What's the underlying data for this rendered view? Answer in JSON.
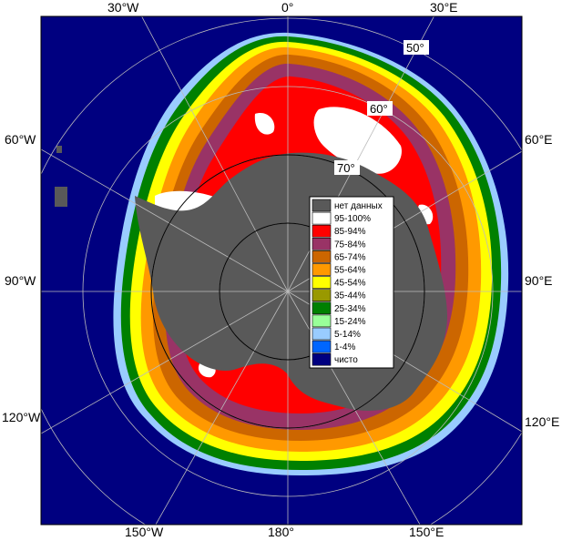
{
  "longitude_labels": {
    "lon_30w": "30°W",
    "lon_0": "0°",
    "lon_30e": "30°E",
    "lon_60w": "60°W",
    "lon_60e": "60°E",
    "lon_90w": "90°W",
    "lon_90e": "90°E",
    "lon_120w": "120°W",
    "lon_120e": "120°E",
    "lon_150w": "150°W",
    "lon_180": "180°",
    "lon_150e": "150°E"
  },
  "latitude_labels": {
    "lat_50": "50°",
    "lat_60": "60°",
    "lat_70": "70°"
  },
  "legend": [
    {
      "label": "нет данных",
      "color": "#595959"
    },
    {
      "label": "95-100%",
      "color": "#ffffff"
    },
    {
      "label": "85-94%",
      "color": "#ff0000"
    },
    {
      "label": "75-84%",
      "color": "#993366"
    },
    {
      "label": "65-74%",
      "color": "#cc6600"
    },
    {
      "label": "55-64%",
      "color": "#ff9900"
    },
    {
      "label": "45-54%",
      "color": "#ffff00"
    },
    {
      "label": "35-44%",
      "color": "#999900"
    },
    {
      "label": "25-34%",
      "color": "#008000"
    },
    {
      "label": "15-24%",
      "color": "#99ff99"
    },
    {
      "label": "5-14%",
      "color": "#99ccff"
    },
    {
      "label": "1-4%",
      "color": "#0066ff"
    },
    {
      "label": "чисто",
      "color": "#000080"
    }
  ],
  "colors": {
    "ocean": "#000080",
    "land": "#595959",
    "grid": "#bbbbbb",
    "frame": "#000000"
  }
}
